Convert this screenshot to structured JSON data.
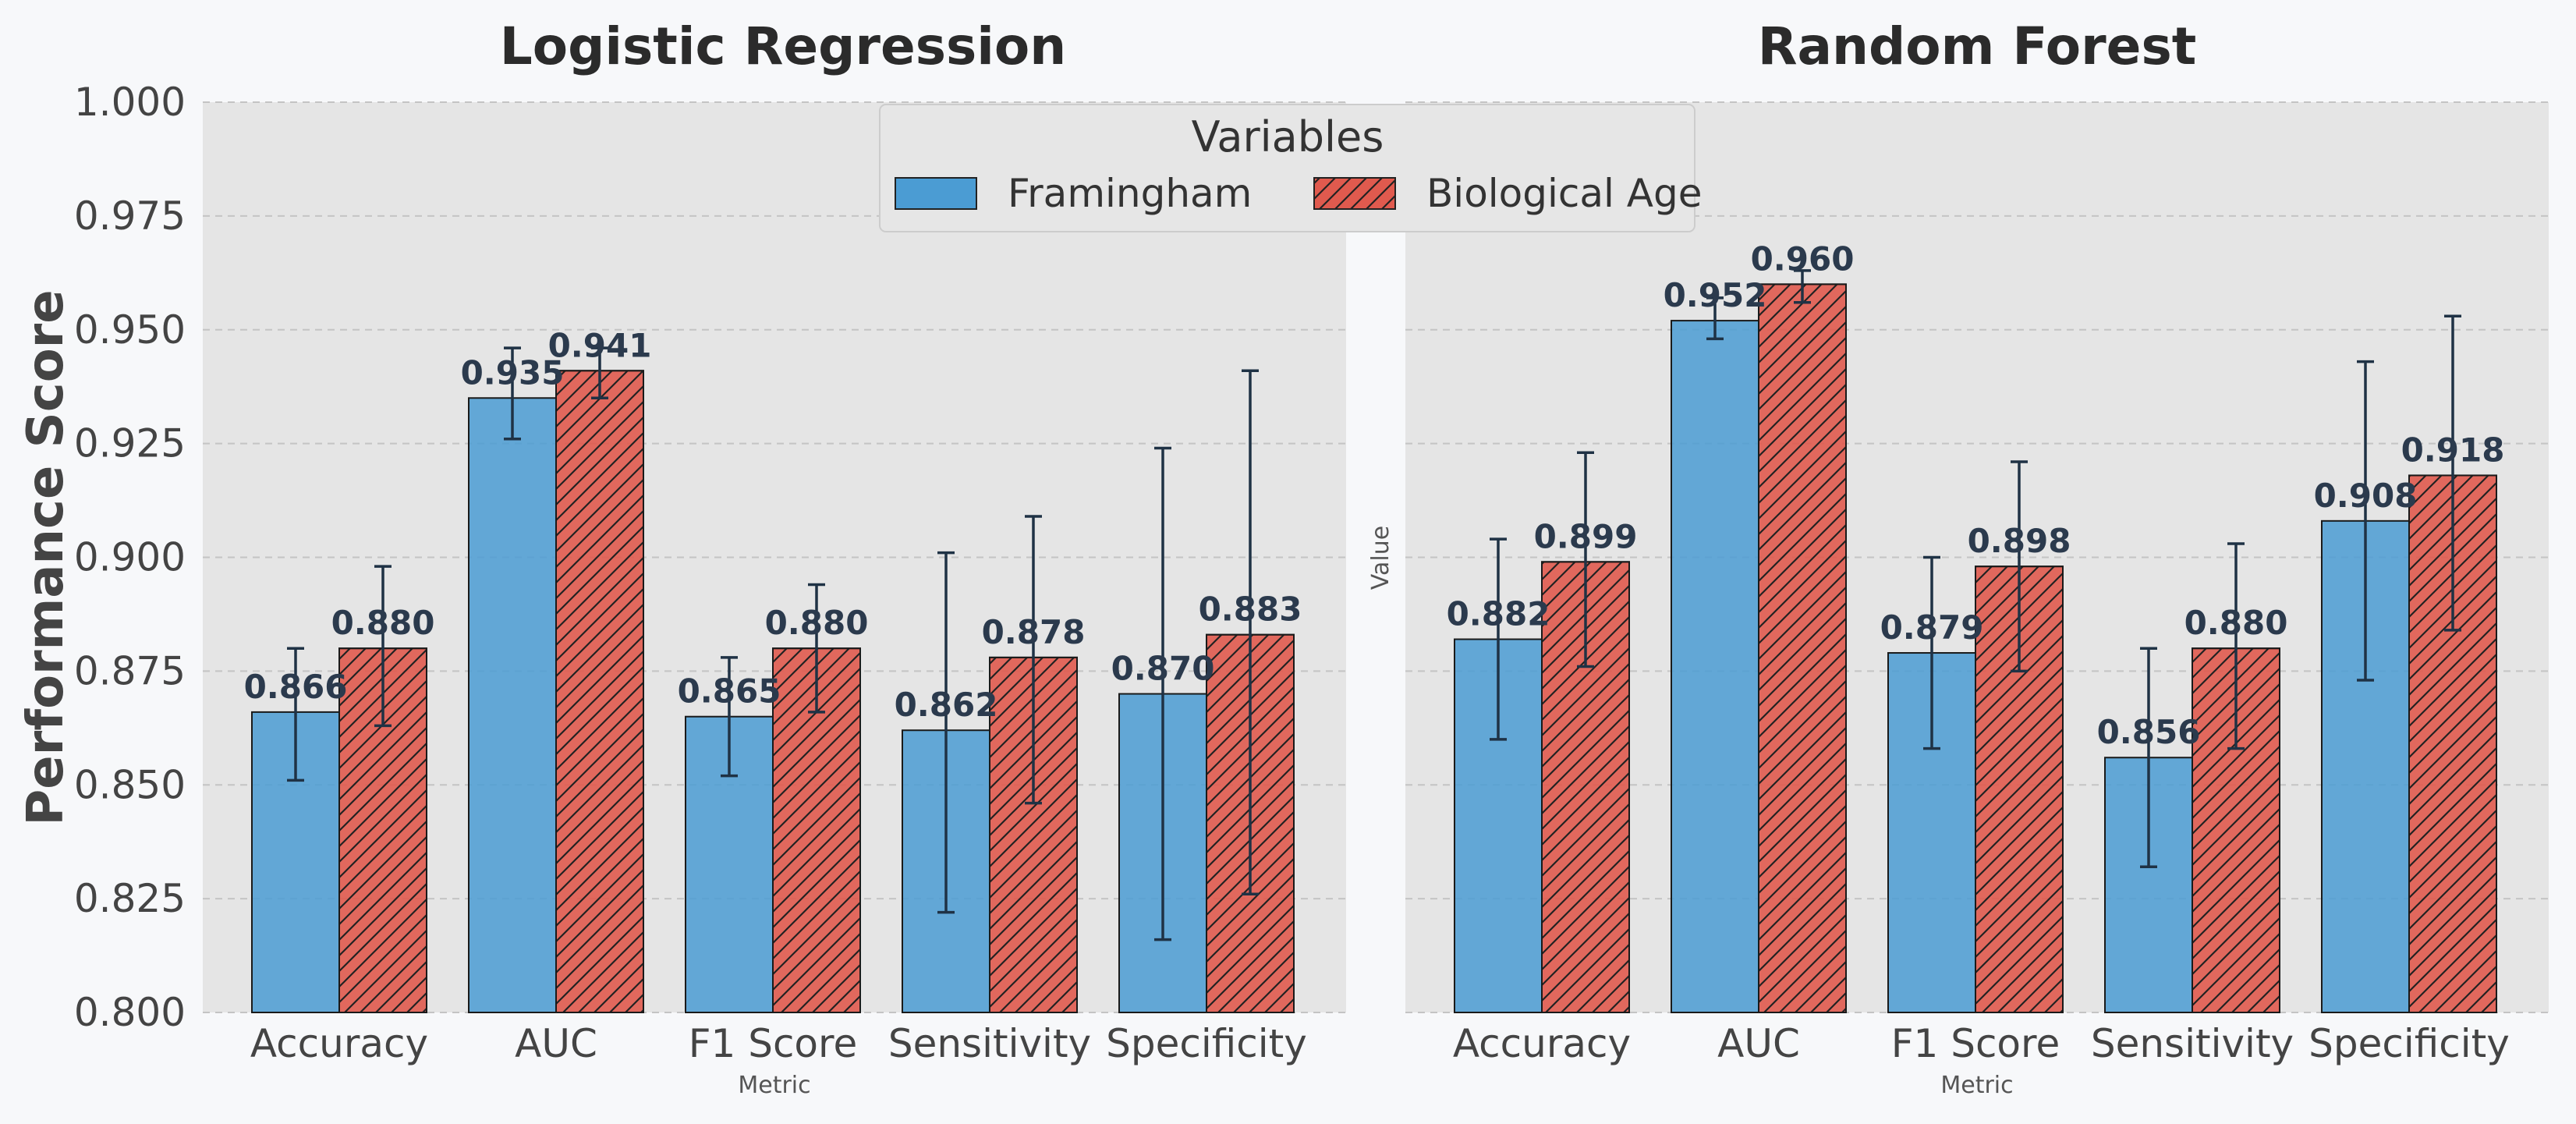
{
  "colors": {
    "background": "#f7f8fa",
    "panel": "#e5e5e5",
    "framingham": "#4b9cd3",
    "biological_age": "#e05a4e",
    "error_bar": "#1f3245",
    "label": "#2b3a4d",
    "tick": "#444444"
  },
  "y_axis": {
    "label": "Performance Score",
    "ticks": [
      "0.800",
      "0.825",
      "0.850",
      "0.875",
      "0.900",
      "0.925",
      "0.950",
      "0.975",
      "1.000"
    ]
  },
  "middle_axis_label": "Value",
  "legend": {
    "title": "Variables",
    "items": [
      "Framingham",
      "Biological Age"
    ]
  },
  "chart_data": [
    {
      "type": "bar",
      "title": "Logistic Regression",
      "xlabel": "Metric",
      "ylabel": "Performance Score",
      "ylim": [
        0.8,
        1.0
      ],
      "categories": [
        "Accuracy",
        "AUC",
        "F1 Score",
        "Sensitivity",
        "Specificity"
      ],
      "series": [
        {
          "name": "Framingham",
          "values": [
            0.866,
            0.935,
            0.865,
            0.862,
            0.87
          ],
          "labels": [
            "0.866",
            "0.935",
            "0.865",
            "0.862",
            "0.870"
          ],
          "err_low": [
            0.851,
            0.926,
            0.852,
            0.822,
            0.816
          ],
          "err_high": [
            0.88,
            0.946,
            0.878,
            0.901,
            0.924
          ]
        },
        {
          "name": "Biological Age",
          "values": [
            0.88,
            0.941,
            0.88,
            0.878,
            0.883
          ],
          "labels": [
            "0.880",
            "0.941",
            "0.880",
            "0.878",
            "0.883"
          ],
          "err_low": [
            0.863,
            0.935,
            0.866,
            0.846,
            0.826
          ],
          "err_high": [
            0.898,
            0.946,
            0.894,
            0.909,
            0.941
          ]
        }
      ]
    },
    {
      "type": "bar",
      "title": "Random Forest",
      "xlabel": "Metric",
      "ylabel": "Value",
      "ylim": [
        0.8,
        1.0
      ],
      "categories": [
        "Accuracy",
        "AUC",
        "F1 Score",
        "Sensitivity",
        "Specificity"
      ],
      "series": [
        {
          "name": "Framingham",
          "values": [
            0.882,
            0.952,
            0.879,
            0.856,
            0.908
          ],
          "labels": [
            "0.882",
            "0.952",
            "0.879",
            "0.856",
            "0.908"
          ],
          "err_low": [
            0.86,
            0.948,
            0.858,
            0.832,
            0.873
          ],
          "err_high": [
            0.904,
            0.957,
            0.9,
            0.88,
            0.943
          ]
        },
        {
          "name": "Biological Age",
          "values": [
            0.899,
            0.96,
            0.898,
            0.88,
            0.918
          ],
          "labels": [
            "0.899",
            "0.960",
            "0.898",
            "0.880",
            "0.918"
          ],
          "err_low": [
            0.876,
            0.956,
            0.875,
            0.858,
            0.884
          ],
          "err_high": [
            0.923,
            0.963,
            0.921,
            0.903,
            0.953
          ]
        }
      ]
    }
  ]
}
